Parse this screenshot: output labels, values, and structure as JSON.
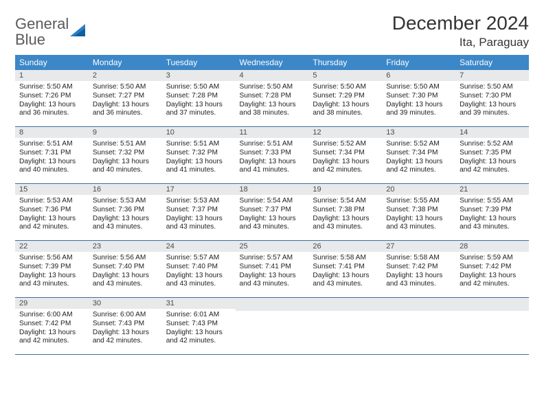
{
  "brand": {
    "word1": "General",
    "word2": "Blue"
  },
  "title": "December 2024",
  "location": "Ita, Paraguay",
  "colors": {
    "header_bg": "#3b87c8",
    "header_text": "#ffffff",
    "daynum_bg": "#e8e9ea",
    "row_border": "#3b6fa0",
    "logo_gray": "#5a5a5a",
    "logo_blue": "#2b7ec2"
  },
  "weekdays": [
    "Sunday",
    "Monday",
    "Tuesday",
    "Wednesday",
    "Thursday",
    "Friday",
    "Saturday"
  ],
  "weeks": [
    [
      {
        "n": "1",
        "sr": "Sunrise: 5:50 AM",
        "ss": "Sunset: 7:26 PM",
        "d1": "Daylight: 13 hours",
        "d2": "and 36 minutes."
      },
      {
        "n": "2",
        "sr": "Sunrise: 5:50 AM",
        "ss": "Sunset: 7:27 PM",
        "d1": "Daylight: 13 hours",
        "d2": "and 36 minutes."
      },
      {
        "n": "3",
        "sr": "Sunrise: 5:50 AM",
        "ss": "Sunset: 7:28 PM",
        "d1": "Daylight: 13 hours",
        "d2": "and 37 minutes."
      },
      {
        "n": "4",
        "sr": "Sunrise: 5:50 AM",
        "ss": "Sunset: 7:28 PM",
        "d1": "Daylight: 13 hours",
        "d2": "and 38 minutes."
      },
      {
        "n": "5",
        "sr": "Sunrise: 5:50 AM",
        "ss": "Sunset: 7:29 PM",
        "d1": "Daylight: 13 hours",
        "d2": "and 38 minutes."
      },
      {
        "n": "6",
        "sr": "Sunrise: 5:50 AM",
        "ss": "Sunset: 7:30 PM",
        "d1": "Daylight: 13 hours",
        "d2": "and 39 minutes."
      },
      {
        "n": "7",
        "sr": "Sunrise: 5:50 AM",
        "ss": "Sunset: 7:30 PM",
        "d1": "Daylight: 13 hours",
        "d2": "and 39 minutes."
      }
    ],
    [
      {
        "n": "8",
        "sr": "Sunrise: 5:51 AM",
        "ss": "Sunset: 7:31 PM",
        "d1": "Daylight: 13 hours",
        "d2": "and 40 minutes."
      },
      {
        "n": "9",
        "sr": "Sunrise: 5:51 AM",
        "ss": "Sunset: 7:32 PM",
        "d1": "Daylight: 13 hours",
        "d2": "and 40 minutes."
      },
      {
        "n": "10",
        "sr": "Sunrise: 5:51 AM",
        "ss": "Sunset: 7:32 PM",
        "d1": "Daylight: 13 hours",
        "d2": "and 41 minutes."
      },
      {
        "n": "11",
        "sr": "Sunrise: 5:51 AM",
        "ss": "Sunset: 7:33 PM",
        "d1": "Daylight: 13 hours",
        "d2": "and 41 minutes."
      },
      {
        "n": "12",
        "sr": "Sunrise: 5:52 AM",
        "ss": "Sunset: 7:34 PM",
        "d1": "Daylight: 13 hours",
        "d2": "and 42 minutes."
      },
      {
        "n": "13",
        "sr": "Sunrise: 5:52 AM",
        "ss": "Sunset: 7:34 PM",
        "d1": "Daylight: 13 hours",
        "d2": "and 42 minutes."
      },
      {
        "n": "14",
        "sr": "Sunrise: 5:52 AM",
        "ss": "Sunset: 7:35 PM",
        "d1": "Daylight: 13 hours",
        "d2": "and 42 minutes."
      }
    ],
    [
      {
        "n": "15",
        "sr": "Sunrise: 5:53 AM",
        "ss": "Sunset: 7:36 PM",
        "d1": "Daylight: 13 hours",
        "d2": "and 42 minutes."
      },
      {
        "n": "16",
        "sr": "Sunrise: 5:53 AM",
        "ss": "Sunset: 7:36 PM",
        "d1": "Daylight: 13 hours",
        "d2": "and 43 minutes."
      },
      {
        "n": "17",
        "sr": "Sunrise: 5:53 AM",
        "ss": "Sunset: 7:37 PM",
        "d1": "Daylight: 13 hours",
        "d2": "and 43 minutes."
      },
      {
        "n": "18",
        "sr": "Sunrise: 5:54 AM",
        "ss": "Sunset: 7:37 PM",
        "d1": "Daylight: 13 hours",
        "d2": "and 43 minutes."
      },
      {
        "n": "19",
        "sr": "Sunrise: 5:54 AM",
        "ss": "Sunset: 7:38 PM",
        "d1": "Daylight: 13 hours",
        "d2": "and 43 minutes."
      },
      {
        "n": "20",
        "sr": "Sunrise: 5:55 AM",
        "ss": "Sunset: 7:38 PM",
        "d1": "Daylight: 13 hours",
        "d2": "and 43 minutes."
      },
      {
        "n": "21",
        "sr": "Sunrise: 5:55 AM",
        "ss": "Sunset: 7:39 PM",
        "d1": "Daylight: 13 hours",
        "d2": "and 43 minutes."
      }
    ],
    [
      {
        "n": "22",
        "sr": "Sunrise: 5:56 AM",
        "ss": "Sunset: 7:39 PM",
        "d1": "Daylight: 13 hours",
        "d2": "and 43 minutes."
      },
      {
        "n": "23",
        "sr": "Sunrise: 5:56 AM",
        "ss": "Sunset: 7:40 PM",
        "d1": "Daylight: 13 hours",
        "d2": "and 43 minutes."
      },
      {
        "n": "24",
        "sr": "Sunrise: 5:57 AM",
        "ss": "Sunset: 7:40 PM",
        "d1": "Daylight: 13 hours",
        "d2": "and 43 minutes."
      },
      {
        "n": "25",
        "sr": "Sunrise: 5:57 AM",
        "ss": "Sunset: 7:41 PM",
        "d1": "Daylight: 13 hours",
        "d2": "and 43 minutes."
      },
      {
        "n": "26",
        "sr": "Sunrise: 5:58 AM",
        "ss": "Sunset: 7:41 PM",
        "d1": "Daylight: 13 hours",
        "d2": "and 43 minutes."
      },
      {
        "n": "27",
        "sr": "Sunrise: 5:58 AM",
        "ss": "Sunset: 7:42 PM",
        "d1": "Daylight: 13 hours",
        "d2": "and 43 minutes."
      },
      {
        "n": "28",
        "sr": "Sunrise: 5:59 AM",
        "ss": "Sunset: 7:42 PM",
        "d1": "Daylight: 13 hours",
        "d2": "and 42 minutes."
      }
    ],
    [
      {
        "n": "29",
        "sr": "Sunrise: 6:00 AM",
        "ss": "Sunset: 7:42 PM",
        "d1": "Daylight: 13 hours",
        "d2": "and 42 minutes."
      },
      {
        "n": "30",
        "sr": "Sunrise: 6:00 AM",
        "ss": "Sunset: 7:43 PM",
        "d1": "Daylight: 13 hours",
        "d2": "and 42 minutes."
      },
      {
        "n": "31",
        "sr": "Sunrise: 6:01 AM",
        "ss": "Sunset: 7:43 PM",
        "d1": "Daylight: 13 hours",
        "d2": "and 42 minutes."
      },
      {
        "n": "",
        "sr": "",
        "ss": "",
        "d1": "",
        "d2": ""
      },
      {
        "n": "",
        "sr": "",
        "ss": "",
        "d1": "",
        "d2": ""
      },
      {
        "n": "",
        "sr": "",
        "ss": "",
        "d1": "",
        "d2": ""
      },
      {
        "n": "",
        "sr": "",
        "ss": "",
        "d1": "",
        "d2": ""
      }
    ]
  ]
}
